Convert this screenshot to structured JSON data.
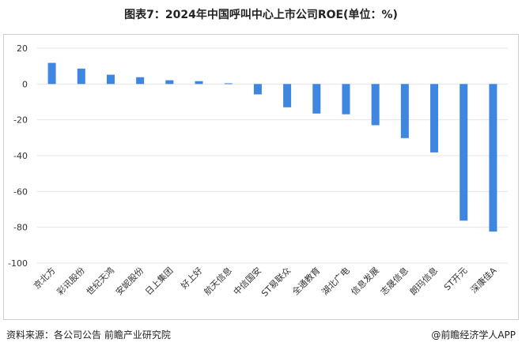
{
  "title": "图表7：2024年中国呼叫中心上市公司ROE(单位：%)",
  "footer": {
    "source": "资料来源：各公司公告 前瞻产业研究院",
    "brand": "@前瞻经济学人APP"
  },
  "colors": {
    "bar": "#3e86e0",
    "grid": "#e4e4e4"
  },
  "chart_data": {
    "type": "bar",
    "title": "图表7：2024年中国呼叫中心上市公司ROE(单位：%)",
    "xlabel": "",
    "ylabel": "",
    "ylim": [
      -100,
      20
    ],
    "yticks": [
      20,
      0,
      -20,
      -40,
      -60,
      -80,
      -100
    ],
    "grid": true,
    "categories": [
      "京北方",
      "彩讯股份",
      "世纪天鸿",
      "安妮股份",
      "日上集团",
      "好上好",
      "航天信息",
      "中信国安",
      "ST易联众",
      "全通教育",
      "湖北广电",
      "信息发展",
      "志晟信息",
      "朗玛信息",
      "ST开元",
      "深康佳A"
    ],
    "values": [
      11.8,
      8.6,
      5.2,
      3.8,
      2.1,
      1.6,
      0.4,
      -5.8,
      -13.0,
      -16.5,
      -16.9,
      -23.0,
      -30.2,
      -38.2,
      -76.3,
      -82.4
    ]
  }
}
